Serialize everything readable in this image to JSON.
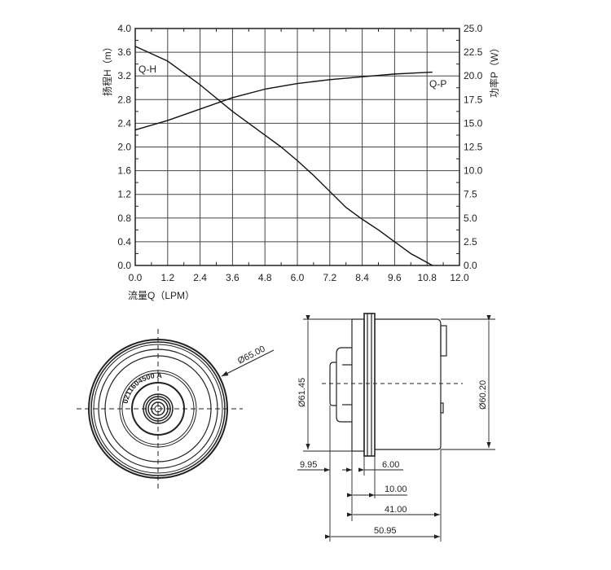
{
  "chart_data": {
    "type": "line",
    "title": "",
    "xlabel": "流量Q（LPM）",
    "ylabel_left": "扬程H（m）",
    "ylabel_right": "功率P（W）",
    "xlim": [
      0,
      12
    ],
    "ylim_left": [
      0,
      4
    ],
    "ylim_right": [
      0,
      25
    ],
    "grid": true,
    "x_ticks": [
      "0.0",
      "1.2",
      "2.4",
      "3.6",
      "4.8",
      "6.0",
      "7.2",
      "8.4",
      "9.6",
      "10.8",
      "12.0"
    ],
    "y_left_ticks": [
      "0.0",
      "0.4",
      "0.8",
      "1.2",
      "1.6",
      "2.0",
      "2.4",
      "2.8",
      "3.2",
      "3.6",
      "4.0"
    ],
    "y_right_ticks": [
      "0.0",
      "2.5",
      "5.0",
      "7.5",
      "10.0",
      "12.5",
      "15.0",
      "17.5",
      "20.0",
      "22.5",
      "25.0"
    ],
    "series": [
      {
        "name": "Q-H",
        "axis": "left",
        "x": [
          0,
          1.2,
          2.4,
          3.6,
          4.8,
          5.4,
          6.0,
          6.6,
          7.2,
          7.8,
          8.4,
          9.0,
          9.6,
          10.2,
          11.0
        ],
        "y": [
          3.7,
          3.45,
          3.05,
          2.6,
          2.2,
          2.0,
          1.77,
          1.52,
          1.25,
          0.98,
          0.78,
          0.6,
          0.4,
          0.2,
          0.0
        ]
      },
      {
        "name": "Q-P",
        "axis": "right",
        "x": [
          0,
          1.2,
          2.4,
          3.6,
          4.8,
          6.0,
          7.2,
          8.4,
          9.6,
          11.0
        ],
        "y": [
          14.3,
          15.3,
          16.5,
          17.7,
          18.6,
          19.2,
          19.6,
          19.9,
          20.2,
          20.4
        ]
      }
    ]
  },
  "drawing": {
    "front_diameter": "Ø65.00",
    "part_number": "0211604500",
    "revision": "A",
    "side_diameter_left": "Ø61.45",
    "side_diameter_right": "Ø60.20",
    "dims": [
      "9.95",
      "6.00",
      "10.00",
      "41.00",
      "50.95"
    ]
  }
}
